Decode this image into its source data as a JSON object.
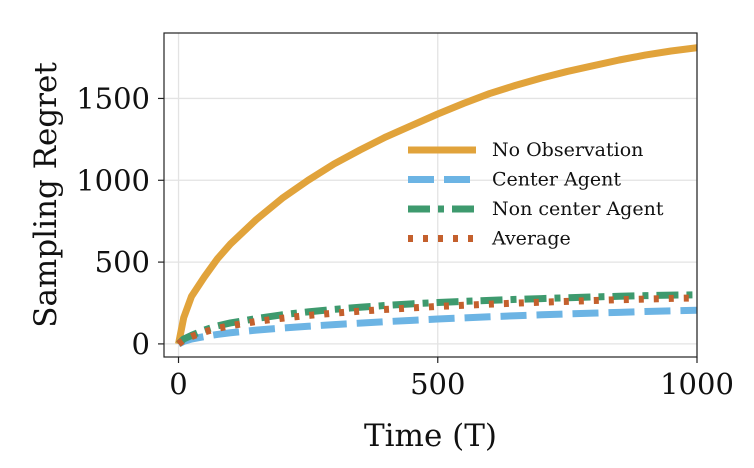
{
  "chart_data": {
    "type": "line",
    "title": "",
    "xlabel": "Time (T)",
    "ylabel": "Sampling Regret",
    "xlim": [
      -28,
      1000
    ],
    "ylim": [
      -80,
      1900
    ],
    "xticks": [
      0,
      500,
      1000
    ],
    "yticks": [
      0,
      500,
      1000,
      1500
    ],
    "xtick_labels": [
      "0",
      "500",
      "1000"
    ],
    "ytick_labels": [
      "0",
      "500",
      "1000",
      "1500"
    ],
    "grid": true,
    "legend_position": "center-right",
    "x": [
      0,
      10,
      25,
      50,
      75,
      100,
      150,
      200,
      250,
      300,
      350,
      400,
      450,
      500,
      550,
      600,
      650,
      700,
      750,
      800,
      850,
      900,
      950,
      1000
    ],
    "series": [
      {
        "name": "No Observation",
        "color": "#E1A33B",
        "style": "solid",
        "values": [
          0,
          160,
          290,
          410,
          520,
          610,
          760,
          890,
          1000,
          1100,
          1185,
          1265,
          1335,
          1405,
          1470,
          1530,
          1580,
          1625,
          1665,
          1700,
          1735,
          1765,
          1790,
          1810
        ]
      },
      {
        "name": "Center Agent",
        "color": "#6CB4E4",
        "style": "dashed",
        "values": [
          0,
          15,
          30,
          45,
          58,
          68,
          84,
          97,
          108,
          118,
          127,
          136,
          144,
          152,
          159,
          166,
          172,
          178,
          183,
          188,
          193,
          198,
          202,
          206
        ]
      },
      {
        "name": "Non center Agent",
        "color": "#3E9A6E",
        "style": "dashdot",
        "values": [
          0,
          30,
          52,
          85,
          110,
          128,
          155,
          178,
          196,
          211,
          224,
          235,
          245,
          253,
          260,
          266,
          272,
          277,
          282,
          287,
          291,
          295,
          298,
          300
        ]
      },
      {
        "name": "Average",
        "color": "#C4602D",
        "style": "dotted",
        "values": [
          0,
          24,
          45,
          73,
          95,
          111,
          137,
          157,
          174,
          188,
          200,
          211,
          220,
          229,
          236,
          243,
          249,
          255,
          260,
          265,
          270,
          274,
          278,
          281
        ]
      }
    ]
  }
}
